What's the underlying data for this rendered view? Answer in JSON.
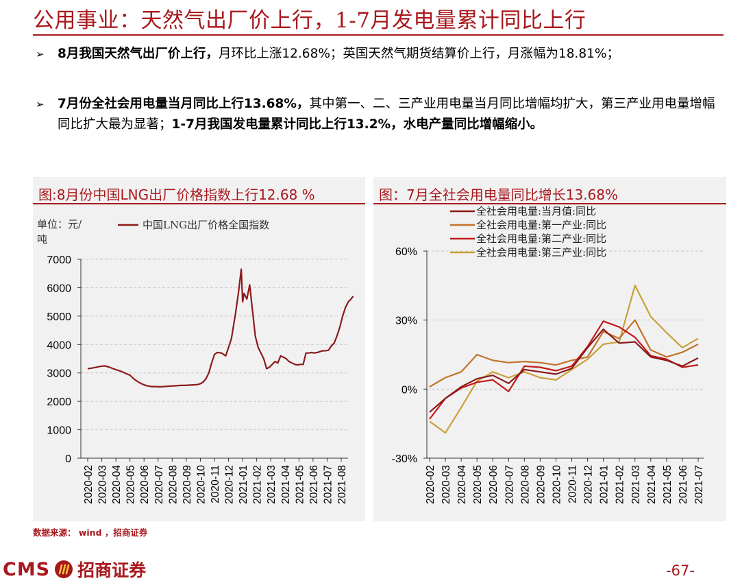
{
  "header": {
    "title": "公用事业：天然气出厂价上行，1-7月发电量累计同比上行"
  },
  "bullets": [
    {
      "bold": "8月我国天然气出厂价上行，",
      "text": "月环比上涨12.68%；英国天然气期货结算价上行，月涨幅为18.81%；"
    },
    {
      "bold": "7月份全社会用电量当月同比上行13.68%，",
      "text": "其中第一、二、三产业用电量当月同比增幅均扩大，第三产业用电量增幅同比扩大最为显著；",
      "bold2": "1-7月我国发电量累计同比上行13.2%，水电产量同比增幅缩小。"
    }
  ],
  "colors": {
    "brand": "#a8181d",
    "lng_line": "#8b1a1a",
    "series_total": "#8b1a1a",
    "series_primary": "#c07428",
    "series_secondary": "#c41a1a",
    "series_tertiary": "#c8a038"
  },
  "chart_data": [
    {
      "type": "line",
      "title": "图:8月份中国LNG出厂价格指数上行12.68 %",
      "unit_label": "单位：元/吨",
      "unit_line1": "单位：元/",
      "unit_line2": "吨",
      "ylim": [
        0,
        7000
      ],
      "yticks": [
        0,
        1000,
        2000,
        3000,
        4000,
        5000,
        6000,
        7000
      ],
      "grid": true,
      "xtick_labels": [
        "2020-02",
        "2020-03",
        "2020-04",
        "2020-05",
        "2020-06",
        "2020-07",
        "2020-08",
        "2020-09",
        "2020-10",
        "2020-11",
        "2020-12",
        "2021-01",
        "2021-02",
        "2021-03",
        "2021-04",
        "2021-05",
        "2021-06",
        "2021-07",
        "2021-08"
      ],
      "series": [
        {
          "name": "中国LNG出厂价格全国指数",
          "x": [
            0,
            0.3,
            0.6,
            0.9,
            1.2,
            1.5,
            1.8,
            2.1,
            2.4,
            2.7,
            3.0,
            3.3,
            3.6,
            3.9,
            4.2,
            4.5,
            4.8,
            5.1,
            5.4,
            5.7,
            6.0,
            6.3,
            6.6,
            6.9,
            7.2,
            7.5,
            7.8,
            8.0,
            8.2,
            8.4,
            8.6,
            8.8,
            9.0,
            9.2,
            9.5,
            9.8,
            10.0,
            10.2,
            10.5,
            10.7,
            10.9,
            11.0,
            11.1,
            11.3,
            11.5,
            11.7,
            11.9,
            12.1,
            12.3,
            12.5,
            12.7,
            12.9,
            13.1,
            13.3,
            13.5,
            13.7,
            13.9,
            14.1,
            14.3,
            14.5,
            14.7,
            14.9,
            15.1,
            15.3,
            15.5,
            15.7,
            15.9,
            16.1,
            16.3,
            16.5,
            16.7,
            16.9,
            17.1,
            17.3,
            17.5,
            17.7,
            17.9,
            18.1,
            18.3,
            18.5,
            18.7,
            18.85
          ],
          "values": [
            3150,
            3170,
            3200,
            3230,
            3250,
            3210,
            3150,
            3100,
            3050,
            2980,
            2920,
            2780,
            2680,
            2600,
            2550,
            2520,
            2520,
            2510,
            2520,
            2530,
            2540,
            2550,
            2560,
            2560,
            2570,
            2580,
            2590,
            2620,
            2680,
            2800,
            3000,
            3350,
            3650,
            3720,
            3700,
            3600,
            3900,
            4200,
            5100,
            5800,
            6650,
            5500,
            5800,
            5600,
            6100,
            5200,
            4300,
            3900,
            3700,
            3500,
            3150,
            3200,
            3300,
            3400,
            3350,
            3600,
            3550,
            3500,
            3400,
            3350,
            3300,
            3280,
            3300,
            3300,
            3700,
            3700,
            3720,
            3700,
            3720,
            3750,
            3780,
            3780,
            3800,
            3950,
            4050,
            4300,
            4600,
            5000,
            5300,
            5500,
            5600,
            5700
          ]
        }
      ]
    },
    {
      "type": "line",
      "title": "图：7月全社会用电量同比增长13.68%",
      "ylim": [
        -30,
        60
      ],
      "yticks": [
        -30,
        0,
        30,
        60
      ],
      "ytick_labels": [
        "-30%",
        "0%",
        "30%",
        "60%"
      ],
      "grid": true,
      "categories": [
        "2020-02",
        "2020-03",
        "2020-04",
        "2020-05",
        "2020-06",
        "2020-07",
        "2020-08",
        "2020-09",
        "2020-10",
        "2020-11",
        "2020-12",
        "2021-01",
        "2021-02",
        "2021-03",
        "2021-04",
        "2021-05",
        "2021-06",
        "2021-07"
      ],
      "xtick_labels": [
        "2020-02",
        "2020-03",
        "2020-04",
        "2020-05",
        "2020-06",
        "2020-07",
        "2020-08",
        "2020-09",
        "2020-10",
        "2020-11",
        "2020-12",
        "2021-01",
        "2021-02",
        "2021-03",
        "2021-04",
        "2021-05",
        "2021-06",
        "2021-07"
      ],
      "series": [
        {
          "name": "全社会用电量:当月值:同比",
          "values": [
            -10,
            -4,
            1,
            4.5,
            6,
            2.5,
            8.5,
            7.5,
            6.5,
            9,
            18,
            26,
            20,
            20.5,
            14,
            12.5,
            10,
            13.5
          ]
        },
        {
          "name": "全社会用电量:第一产业:同比",
          "values": [
            1,
            5,
            7.5,
            15,
            12.5,
            11.5,
            12,
            11.5,
            10.5,
            12.5,
            14,
            25,
            22,
            30,
            17,
            14,
            16,
            19.5
          ]
        },
        {
          "name": "全社会用电量:第二产业:同比",
          "values": [
            -13,
            -4,
            0.5,
            3,
            4,
            -1,
            10,
            9.5,
            8,
            10,
            18.5,
            29.5,
            27,
            22.5,
            14.5,
            13,
            9.5,
            10.5
          ]
        },
        {
          "name": "全社会用电量:第三产业:同比",
          "values": [
            -14,
            -19,
            -8,
            3.5,
            7.5,
            5,
            7.5,
            5,
            4,
            8.5,
            13,
            19.5,
            20.5,
            45,
            31.5,
            24.5,
            18,
            22
          ]
        }
      ]
    }
  ],
  "footer": {
    "source": "数据来源： wind ，招商证券",
    "logo_text": "CMS",
    "company_name": "招商证券",
    "page_number": "-67-"
  }
}
